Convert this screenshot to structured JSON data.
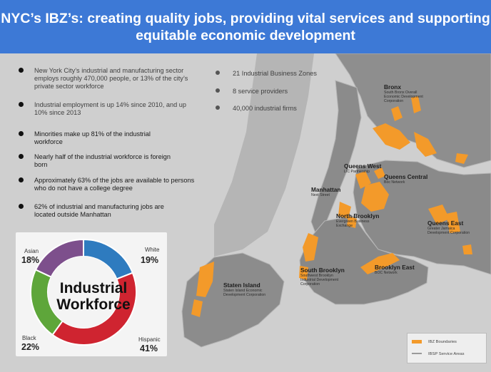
{
  "header": {
    "title_line1": "NYC’s IBZ’s: creating quality jobs, providing vital services and supporting",
    "title_line2": "equitable economic development"
  },
  "bullets": [
    {
      "text": "New York City’s industrial and manufacturing sector employs roughly 470,000 people, or 13% of the city’s private sector workforce"
    },
    {
      "text": "Industrial employment is up 14% since 2010, and up 10% since 2013"
    },
    {
      "text": "Minorities make up 81% of the industrial workforce"
    },
    {
      "text": "Nearly half of the industrial workforce is foreign born"
    },
    {
      "text": "Approximately 63% of the jobs are available to persons who do not have a college degree"
    },
    {
      "text": "62% of industrial and manufacturing jobs are located outside Manhattan"
    }
  ],
  "right_bullets": [
    {
      "text": "21 Industrial Business Zones"
    },
    {
      "text": "8 service providers"
    },
    {
      "text": "40,000 industrial firms"
    }
  ],
  "workforce_chart": {
    "center_title_line1": "Industrial",
    "center_title_line2": "Workforce"
  },
  "chart_data": {
    "type": "pie",
    "title": "Industrial Workforce",
    "categories": [
      "White",
      "Hispanic",
      "Black",
      "Asian"
    ],
    "values": [
      19,
      41,
      22,
      18
    ],
    "labels": [
      "19%",
      "41%",
      "22%",
      "18%"
    ],
    "colors": [
      "#2e7bbf",
      "#cf2430",
      "#5ea63a",
      "#7d4f8c"
    ]
  },
  "map": {
    "boroughs": [
      {
        "name": "Bronx",
        "provider": "South Bronx Overall Economic Development Corporation"
      },
      {
        "name": "Queens West",
        "provider": "LIC Partnership"
      },
      {
        "name": "Queens Central",
        "provider": "Boc Network"
      },
      {
        "name": "Manhattan",
        "provider": "Next Street"
      },
      {
        "name": "North Brooklyn",
        "provider": "Evergreen Business Exchange"
      },
      {
        "name": "Queens East",
        "provider": "Greater Jamaica Development Corporation"
      },
      {
        "name": "Brooklyn East",
        "provider": "BOC Network"
      },
      {
        "name": "South Brooklyn",
        "provider": "Southwest Brooklyn Industrial Development Corporation"
      },
      {
        "name": "Staten Island",
        "provider": "Staten Island Economic Development Corporation"
      }
    ],
    "legend": [
      {
        "label": "IBZ Boundaries",
        "color": "#f39a2a"
      },
      {
        "label": "IBSP Service Areas",
        "color": "#9a9a9a"
      }
    ]
  }
}
